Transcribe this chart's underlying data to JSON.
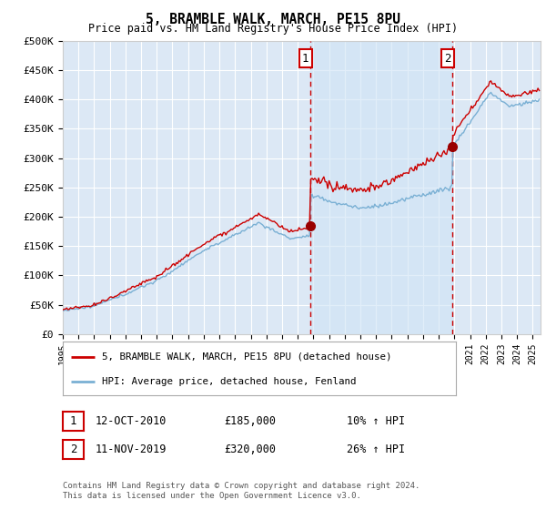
{
  "title": "5, BRAMBLE WALK, MARCH, PE15 8PU",
  "subtitle": "Price paid vs. HM Land Registry's House Price Index (HPI)",
  "ylabel_ticks": [
    "£0",
    "£50K",
    "£100K",
    "£150K",
    "£200K",
    "£250K",
    "£300K",
    "£350K",
    "£400K",
    "£450K",
    "£500K"
  ],
  "ytick_values": [
    0,
    50000,
    100000,
    150000,
    200000,
    250000,
    300000,
    350000,
    400000,
    450000,
    500000
  ],
  "ylim": [
    0,
    500000
  ],
  "xlim_start": 1995.0,
  "xlim_end": 2025.5,
  "background_color": "#dce8f5",
  "shaded_region_color": "#d0e4f5",
  "grid_color": "#ffffff",
  "red_line_color": "#cc0000",
  "blue_line_color": "#7ab0d4",
  "purchase1_x": 2010.79,
  "purchase1_y": 185000,
  "purchase1_label": "1",
  "purchase2_x": 2019.87,
  "purchase2_y": 320000,
  "purchase2_label": "2",
  "vline_color": "#cc0000",
  "marker_color": "#990000",
  "legend_red_label": "5, BRAMBLE WALK, MARCH, PE15 8PU (detached house)",
  "legend_blue_label": "HPI: Average price, detached house, Fenland",
  "note1_label": "1",
  "note1_date": "12-OCT-2010",
  "note1_price": "£185,000",
  "note1_hpi": "10% ↑ HPI",
  "note2_label": "2",
  "note2_date": "11-NOV-2019",
  "note2_price": "£320,000",
  "note2_hpi": "26% ↑ HPI",
  "footer": "Contains HM Land Registry data © Crown copyright and database right 2024.\nThis data is licensed under the Open Government Licence v3.0."
}
